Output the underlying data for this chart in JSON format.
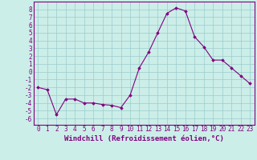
{
  "title": "",
  "xlabel": "Windchill (Refroidissement éolien,°C)",
  "x_values": [
    0,
    1,
    2,
    3,
    4,
    5,
    6,
    7,
    8,
    9,
    10,
    11,
    12,
    13,
    14,
    15,
    16,
    17,
    18,
    19,
    20,
    21,
    22,
    23
  ],
  "y_values": [
    -2,
    -2.3,
    -5.5,
    -3.5,
    -3.5,
    -4,
    -4,
    -4.2,
    -4.3,
    -4.6,
    -3,
    0.5,
    2.5,
    5,
    7.5,
    8.2,
    7.8,
    4.5,
    3.2,
    1.5,
    1.5,
    0.5,
    -0.5,
    -1.5
  ],
  "line_color": "#800080",
  "marker": "D",
  "marker_size": 1.8,
  "line_width": 0.8,
  "bg_color": "#cceee8",
  "grid_color": "#99cccc",
  "yticks": [
    -6,
    -5,
    -4,
    -3,
    -2,
    -1,
    0,
    1,
    2,
    3,
    4,
    5,
    6,
    7,
    8
  ],
  "ylim": [
    -6.8,
    9.0
  ],
  "xlim": [
    -0.5,
    23.5
  ],
  "xlabel_fontsize": 6.5,
  "tick_fontsize": 5.5
}
